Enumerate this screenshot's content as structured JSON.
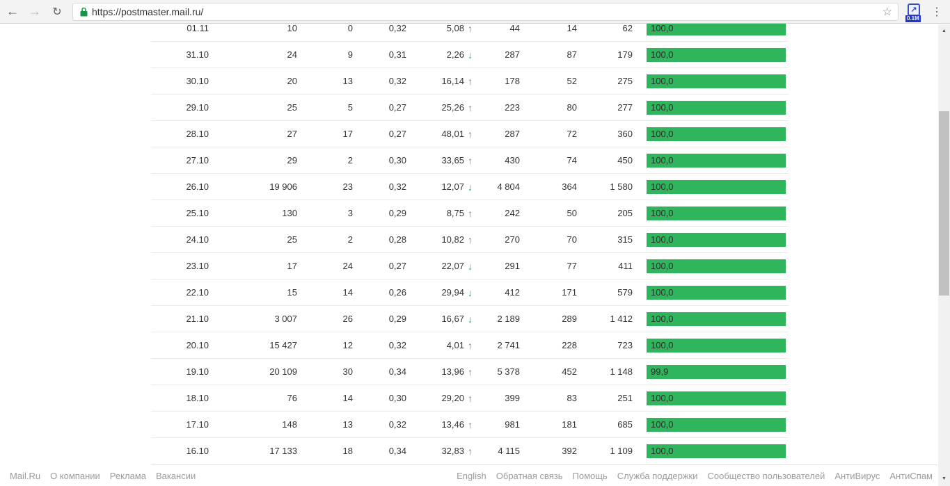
{
  "browser": {
    "url": "https://postmaster.mail.ru/",
    "back_glyph": "←",
    "forward_glyph": "→",
    "reload_glyph": "↻",
    "star_glyph": "☆",
    "menu_glyph": "⋮",
    "extension_glyph": "↗",
    "extension_badge": "0.1M"
  },
  "colors": {
    "bar_green": "#2fb55c",
    "trend_up": "#e2512e",
    "trend_down": "#2daa47",
    "lock_green": "#1a9349"
  },
  "table": {
    "rows": [
      {
        "date": "01.11",
        "left_values": [
          "10",
          "0",
          "0,32"
        ],
        "trend_value": "5,08",
        "trend": "up",
        "right_values": [
          "44",
          "14",
          "62"
        ],
        "bar_label": "100,0",
        "bar_pct": 100
      },
      {
        "date": "31.10",
        "left_values": [
          "24",
          "9",
          "0,31"
        ],
        "trend_value": "2,26",
        "trend": "down",
        "right_values": [
          "287",
          "87",
          "179"
        ],
        "bar_label": "100,0",
        "bar_pct": 100
      },
      {
        "date": "30.10",
        "left_values": [
          "20",
          "13",
          "0,32"
        ],
        "trend_value": "16,14",
        "trend": "up",
        "right_values": [
          "178",
          "52",
          "275"
        ],
        "bar_label": "100,0",
        "bar_pct": 100
      },
      {
        "date": "29.10",
        "left_values": [
          "25",
          "5",
          "0,27"
        ],
        "trend_value": "25,26",
        "trend": "up",
        "right_values": [
          "223",
          "80",
          "277"
        ],
        "bar_label": "100,0",
        "bar_pct": 100
      },
      {
        "date": "28.10",
        "left_values": [
          "27",
          "17",
          "0,27"
        ],
        "trend_value": "48,01",
        "trend": "up",
        "right_values": [
          "287",
          "72",
          "360"
        ],
        "bar_label": "100,0",
        "bar_pct": 100
      },
      {
        "date": "27.10",
        "left_values": [
          "29",
          "2",
          "0,30"
        ],
        "trend_value": "33,65",
        "trend": "up",
        "right_values": [
          "430",
          "74",
          "450"
        ],
        "bar_label": "100,0",
        "bar_pct": 100
      },
      {
        "date": "26.10",
        "left_values": [
          "19 906",
          "23",
          "0,32"
        ],
        "trend_value": "12,07",
        "trend": "down",
        "right_values": [
          "4 804",
          "364",
          "1 580"
        ],
        "bar_label": "100,0",
        "bar_pct": 100
      },
      {
        "date": "25.10",
        "left_values": [
          "130",
          "3",
          "0,29"
        ],
        "trend_value": "8,75",
        "trend": "up",
        "right_values": [
          "242",
          "50",
          "205"
        ],
        "bar_label": "100,0",
        "bar_pct": 100
      },
      {
        "date": "24.10",
        "left_values": [
          "25",
          "2",
          "0,28"
        ],
        "trend_value": "10,82",
        "trend": "up",
        "right_values": [
          "270",
          "70",
          "315"
        ],
        "bar_label": "100,0",
        "bar_pct": 100
      },
      {
        "date": "23.10",
        "left_values": [
          "17",
          "24",
          "0,27"
        ],
        "trend_value": "22,07",
        "trend": "down",
        "right_values": [
          "291",
          "77",
          "411"
        ],
        "bar_label": "100,0",
        "bar_pct": 100
      },
      {
        "date": "22.10",
        "left_values": [
          "15",
          "14",
          "0,26"
        ],
        "trend_value": "29,94",
        "trend": "down",
        "right_values": [
          "412",
          "171",
          "579"
        ],
        "bar_label": "100,0",
        "bar_pct": 100
      },
      {
        "date": "21.10",
        "left_values": [
          "3 007",
          "26",
          "0,29"
        ],
        "trend_value": "16,67",
        "trend": "down",
        "right_values": [
          "2 189",
          "289",
          "1 412"
        ],
        "bar_label": "100,0",
        "bar_pct": 100
      },
      {
        "date": "20.10",
        "left_values": [
          "15 427",
          "12",
          "0,32"
        ],
        "trend_value": "4,01",
        "trend": "up",
        "right_values": [
          "2 741",
          "228",
          "723"
        ],
        "bar_label": "100,0",
        "bar_pct": 100
      },
      {
        "date": "19.10",
        "left_values": [
          "20 109",
          "30",
          "0,34"
        ],
        "trend_value": "13,96",
        "trend": "up",
        "right_values": [
          "5 378",
          "452",
          "1 148"
        ],
        "bar_label": "99,9",
        "bar_pct": 99.9
      },
      {
        "date": "18.10",
        "left_values": [
          "76",
          "14",
          "0,30"
        ],
        "trend_value": "29,20",
        "trend": "up",
        "right_values": [
          "399",
          "83",
          "251"
        ],
        "bar_label": "100,0",
        "bar_pct": 100
      },
      {
        "date": "17.10",
        "left_values": [
          "148",
          "13",
          "0,32"
        ],
        "trend_value": "13,46",
        "trend": "up",
        "right_values": [
          "981",
          "181",
          "685"
        ],
        "bar_label": "100,0",
        "bar_pct": 100
      },
      {
        "date": "16.10",
        "left_values": [
          "17 133",
          "18",
          "0,34"
        ],
        "trend_value": "32,83",
        "trend": "up",
        "right_values": [
          "4 115",
          "392",
          "1 109"
        ],
        "bar_label": "100,0",
        "bar_pct": 100
      }
    ]
  },
  "footer": {
    "left_links": [
      "Mail.Ru",
      "О компании",
      "Реклама",
      "Вакансии"
    ],
    "right_links": [
      "English",
      "Обратная связь",
      "Помощь",
      "Служба поддержки",
      "Сообщество пользователей",
      "АнтиВирус",
      "АнтиСпам"
    ]
  },
  "scrollbar": {
    "up_glyph": "▲",
    "down_glyph": "▼"
  }
}
